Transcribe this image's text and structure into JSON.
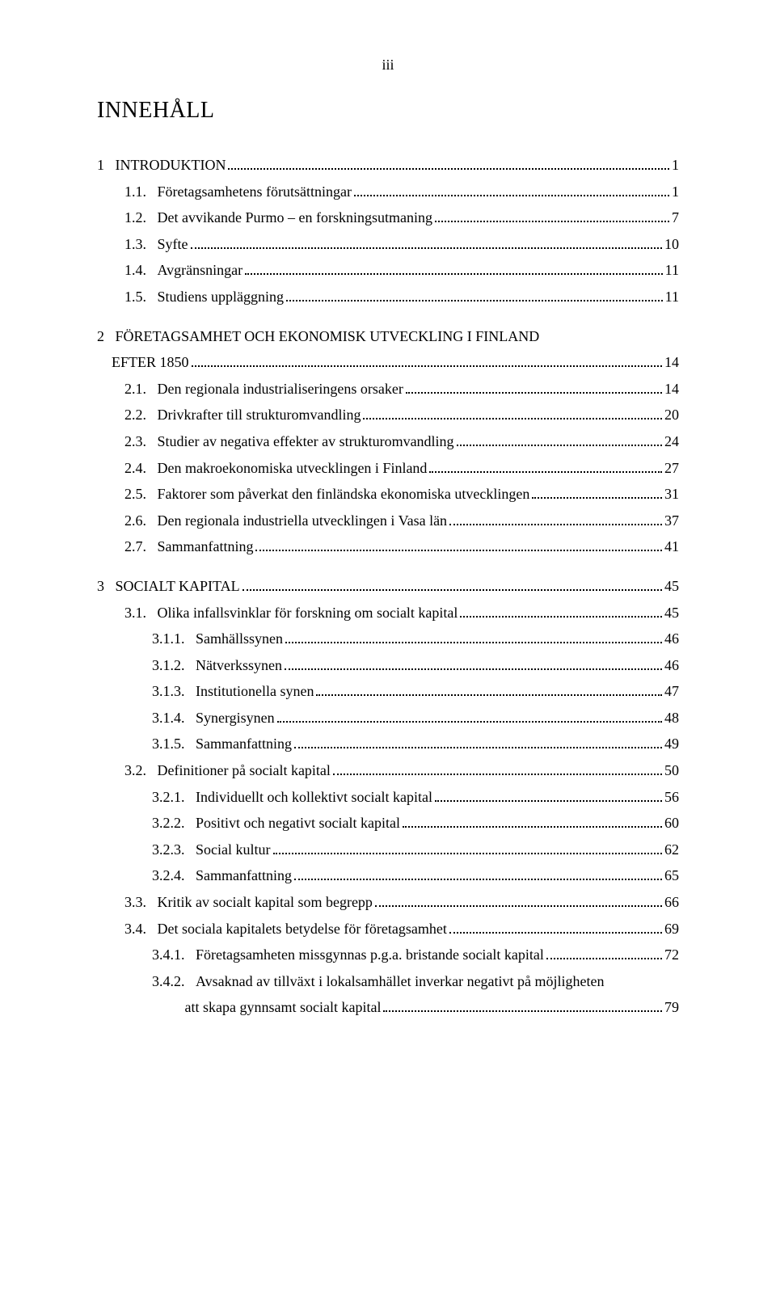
{
  "page_number": "iii",
  "title": "INNEHÅLL",
  "entries": [
    {
      "level": 1,
      "label": "1",
      "text": "INTRODUKTION",
      "page": "1",
      "chapter": true
    },
    {
      "level": 2,
      "label": "1.1.",
      "text": "Företagsamhetens förutsättningar",
      "page": "1"
    },
    {
      "level": 2,
      "label": "1.2.",
      "text": "Det avvikande Purmo – en forskningsutmaning",
      "page": "7"
    },
    {
      "level": 2,
      "label": "1.3.",
      "text": "Syfte",
      "page": "10"
    },
    {
      "level": 2,
      "label": "1.4.",
      "text": "Avgränsningar",
      "page": "11"
    },
    {
      "level": 2,
      "label": "1.5.",
      "text": "Studiens uppläggning",
      "page": "11"
    },
    {
      "level": 1,
      "label": "2",
      "text": "FÖRETAGSAMHET OCH EKONOMISK UTVECKLING I FINLAND EFTER 1850",
      "page": "14",
      "chapter": true,
      "wrap": true,
      "wrapSplit": "FÖRETAGSAMHET OCH EKONOMISK UTVECKLING I FINLAND",
      "wrapSecond": "EFTER 1850"
    },
    {
      "level": 2,
      "label": "2.1.",
      "text": "Den regionala industrialiseringens orsaker",
      "page": "14"
    },
    {
      "level": 2,
      "label": "2.2.",
      "text": "Drivkrafter till strukturomvandling",
      "page": "20"
    },
    {
      "level": 2,
      "label": "2.3.",
      "text": "Studier av negativa effekter av strukturomvandling",
      "page": "24"
    },
    {
      "level": 2,
      "label": "2.4.",
      "text": "Den makroekonomiska utvecklingen i Finland",
      "page": "27"
    },
    {
      "level": 2,
      "label": "2.5.",
      "text": "Faktorer som påverkat den finländska ekonomiska utvecklingen",
      "page": "31"
    },
    {
      "level": 2,
      "label": "2.6.",
      "text": "Den regionala industriella utvecklingen i Vasa län",
      "page": "37"
    },
    {
      "level": 2,
      "label": "2.7.",
      "text": "Sammanfattning",
      "page": "41"
    },
    {
      "level": 1,
      "label": "3",
      "text": "SOCIALT KAPITAL",
      "page": "45",
      "chapter": true
    },
    {
      "level": 2,
      "label": "3.1.",
      "text": "Olika infallsvinklar för forskning om socialt kapital",
      "page": "45"
    },
    {
      "level": 3,
      "label": "3.1.1.",
      "text": "Samhällssynen",
      "page": "46"
    },
    {
      "level": 3,
      "label": "3.1.2.",
      "text": "Nätverkssynen",
      "page": "46"
    },
    {
      "level": 3,
      "label": "3.1.3.",
      "text": "Institutionella synen",
      "page": "47"
    },
    {
      "level": 3,
      "label": "3.1.4.",
      "text": "Synergisynen",
      "page": "48"
    },
    {
      "level": 3,
      "label": "3.1.5.",
      "text": "Sammanfattning",
      "page": "49"
    },
    {
      "level": 2,
      "label": "3.2.",
      "text": "Definitioner på socialt kapital",
      "page": "50"
    },
    {
      "level": 3,
      "label": "3.2.1.",
      "text": "Individuellt och kollektivt socialt kapital",
      "page": "56"
    },
    {
      "level": 3,
      "label": "3.2.2.",
      "text": "Positivt och negativt socialt kapital",
      "page": "60"
    },
    {
      "level": 3,
      "label": "3.2.3.",
      "text": "Social kultur",
      "page": "62"
    },
    {
      "level": 3,
      "label": "3.2.4.",
      "text": "Sammanfattning",
      "page": "65"
    },
    {
      "level": 2,
      "label": "3.3.",
      "text": "Kritik av socialt kapital som begrepp",
      "page": "66"
    },
    {
      "level": 2,
      "label": "3.4.",
      "text": "Det sociala kapitalets betydelse för företagsamhet",
      "page": "69"
    },
    {
      "level": 3,
      "label": "3.4.1.",
      "text": "Företagsamheten missgynnas p.g.a. bristande socialt kapital",
      "page": "72"
    },
    {
      "level": 3,
      "label": "3.4.2.",
      "text": "Avsaknad av tillväxt i lokalsamhället inverkar negativt på möjligheten att skapa gynnsamt socialt kapital",
      "page": "79",
      "wrap": true,
      "wrapSplit": "Avsaknad av tillväxt i lokalsamhället inverkar negativt på möjligheten",
      "wrapSecond": "att skapa gynnsamt socialt kapital"
    }
  ]
}
